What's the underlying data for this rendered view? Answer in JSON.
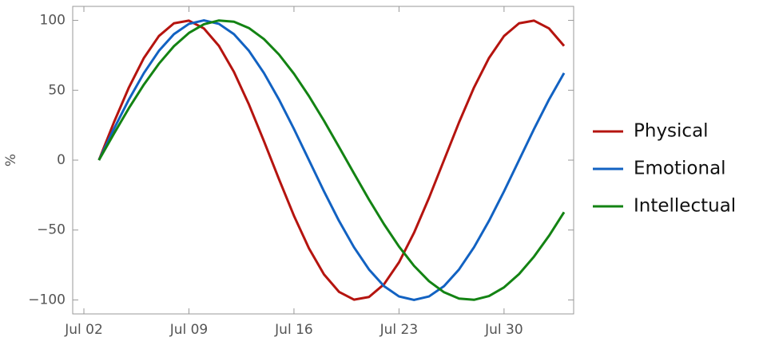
{
  "chart_data": {
    "type": "line",
    "ylabel": "%",
    "x": [
      "Jul 03",
      "Jul 04",
      "Jul 05",
      "Jul 06",
      "Jul 07",
      "Jul 08",
      "Jul 09",
      "Jul 10",
      "Jul 11",
      "Jul 12",
      "Jul 13",
      "Jul 14",
      "Jul 15",
      "Jul 16",
      "Jul 17",
      "Jul 18",
      "Jul 19",
      "Jul 20",
      "Jul 21",
      "Jul 22",
      "Jul 23",
      "Jul 24",
      "Jul 25",
      "Jul 26",
      "Jul 27",
      "Jul 28",
      "Jul 29",
      "Jul 30",
      "Jul 31",
      "Aug 01",
      "Aug 02",
      "Aug 03"
    ],
    "series": [
      {
        "name": "Physical",
        "color": "#b5140f",
        "values": [
          0,
          27.0,
          52.0,
          73.1,
          88.8,
          97.9,
          99.8,
          94.2,
          81.7,
          63.1,
          39.8,
          13.6,
          -13.6,
          -39.8,
          -63.1,
          -81.7,
          -94.2,
          -99.8,
          -97.9,
          -88.8,
          -73.1,
          -52.0,
          -27.0,
          0,
          27.0,
          52.0,
          73.1,
          88.8,
          97.9,
          99.8,
          94.2,
          81.7
        ]
      },
      {
        "name": "Emotional",
        "color": "#1262c2",
        "values": [
          0,
          22.3,
          43.4,
          62.3,
          78.2,
          90.1,
          97.5,
          100,
          97.5,
          90.1,
          78.2,
          62.3,
          43.4,
          22.3,
          0,
          -22.3,
          -43.4,
          -62.3,
          -78.2,
          -90.1,
          -97.5,
          -100,
          -97.5,
          -90.1,
          -78.2,
          -62.3,
          -43.4,
          -22.3,
          0,
          22.3,
          43.4,
          62.3
        ]
      },
      {
        "name": "Intellectual",
        "color": "#138313",
        "values": [
          0,
          18.9,
          37.2,
          54.1,
          69.0,
          81.5,
          91.0,
          97.2,
          99.9,
          99.0,
          94.5,
          86.6,
          75.6,
          61.8,
          45.8,
          28.2,
          9.5,
          -9.5,
          -28.2,
          -45.8,
          -61.8,
          -75.6,
          -86.6,
          -94.5,
          -99.0,
          -99.9,
          -97.2,
          -91.0,
          -81.5,
          -69.0,
          -54.1,
          -37.2
        ]
      }
    ],
    "xlim": [
      "Jul 02",
      "Aug 03"
    ],
    "xticks": [
      "Jul 02",
      "Jul 09",
      "Jul 16",
      "Jul 23",
      "Jul 30"
    ],
    "ylim": [
      -110,
      110
    ],
    "yticks": [
      {
        "value": -100,
        "label": "−100"
      },
      {
        "value": -50,
        "label": "−50"
      },
      0,
      50,
      100
    ],
    "legend": "right"
  }
}
